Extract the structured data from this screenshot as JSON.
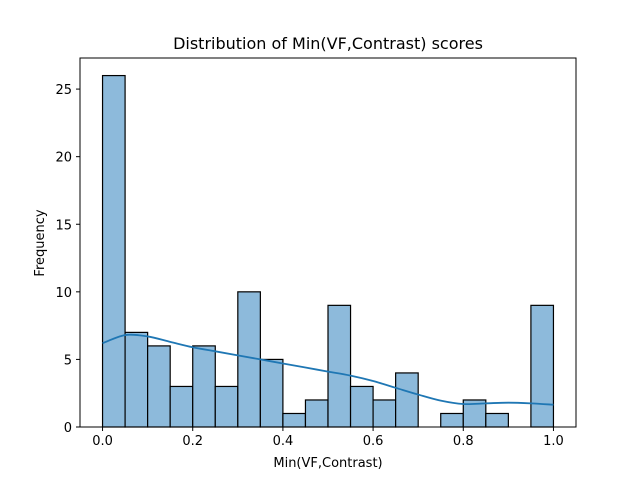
{
  "chart_data": {
    "type": "bar",
    "title": "Distribution of Min(VF,Contrast) scores",
    "xlabel": "Min(VF,Contrast)",
    "ylabel": "Frequency",
    "xlim": [
      -0.05,
      1.05
    ],
    "ylim": [
      0,
      27.3
    ],
    "x_ticks": [
      0.0,
      0.2,
      0.4,
      0.6,
      0.8,
      1.0
    ],
    "x_tick_labels": [
      "0.0",
      "0.2",
      "0.4",
      "0.6",
      "0.8",
      "1.0"
    ],
    "y_ticks": [
      0,
      5,
      10,
      15,
      20,
      25
    ],
    "y_tick_labels": [
      "0",
      "5",
      "10",
      "15",
      "20",
      "25"
    ],
    "bin_edges": [
      0.0,
      0.05,
      0.1,
      0.15,
      0.2,
      0.25,
      0.3,
      0.35,
      0.4,
      0.45,
      0.5,
      0.55,
      0.6,
      0.65,
      0.7,
      0.75,
      0.8,
      0.85,
      0.9,
      0.95,
      1.0
    ],
    "values": [
      26,
      7,
      6,
      3,
      6,
      3,
      10,
      5,
      1,
      2,
      9,
      3,
      2,
      4,
      0,
      1,
      2,
      1,
      0,
      9
    ],
    "kde": {
      "x": [
        0.0,
        0.05,
        0.1,
        0.15,
        0.2,
        0.25,
        0.3,
        0.35,
        0.4,
        0.45,
        0.5,
        0.55,
        0.6,
        0.65,
        0.7,
        0.75,
        0.8,
        0.85,
        0.9,
        0.95,
        1.0
      ],
      "y": [
        6.2,
        6.8,
        6.7,
        6.3,
        5.9,
        5.6,
        5.3,
        5.0,
        4.7,
        4.4,
        4.1,
        3.8,
        3.4,
        2.9,
        2.4,
        1.95,
        1.7,
        1.75,
        1.8,
        1.75,
        1.65
      ]
    },
    "grid": false,
    "colors": {
      "bar_fill": "#8dbadb",
      "bar_edge": "#000000",
      "kde_line": "#1f77b4",
      "axes": "#000000"
    }
  }
}
